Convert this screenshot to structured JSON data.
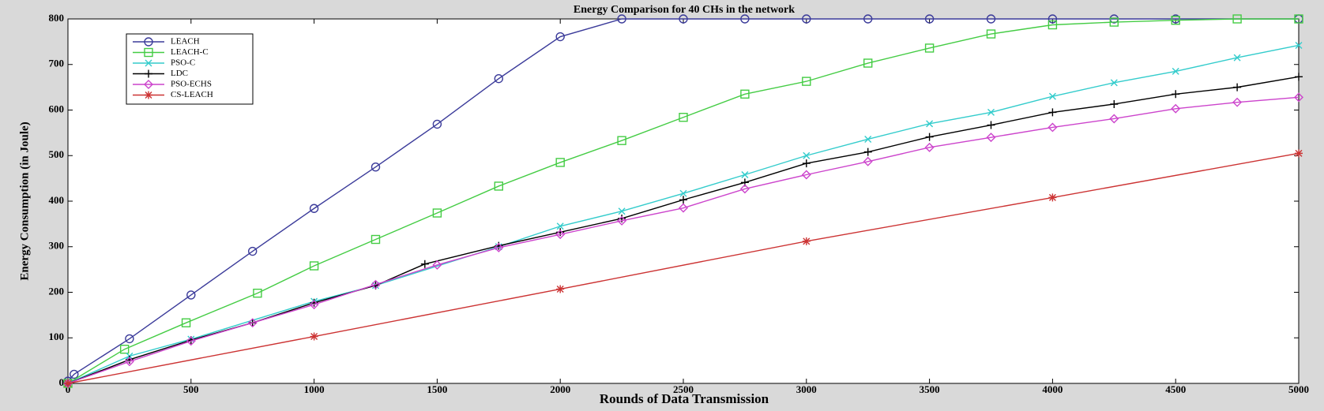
{
  "chart_data": {
    "type": "line",
    "title": "Energy Comparison for 40 CHs in the network",
    "x_label": "Rounds of Data Transmission",
    "y_label": "Energy Consumption (in Joule)",
    "xlim": [
      0,
      5000
    ],
    "xticks": [
      0,
      500,
      1000,
      1500,
      2000,
      2500,
      3000,
      3500,
      4000,
      4500,
      5000
    ],
    "ylim": [
      0,
      800
    ],
    "yticks": [
      0,
      100,
      200,
      300,
      400,
      500,
      600,
      700,
      800
    ],
    "grid": false,
    "legend": "upper left",
    "series": [
      {
        "name": "LEACH",
        "color": "#3b3b9a",
        "marker": "circle",
        "x": [
          0,
          25,
          250,
          500,
          750,
          1000,
          1250,
          1500,
          1750,
          2000,
          2250,
          2500,
          2750,
          3000,
          3250,
          3500,
          3750,
          4000,
          4250,
          4500,
          5000
        ],
        "values": [
          5,
          20,
          98,
          194,
          290,
          384,
          475,
          569,
          669,
          761,
          800,
          800,
          800,
          800,
          800,
          800,
          800,
          800,
          800,
          800,
          800
        ]
      },
      {
        "name": "LEACH-C",
        "color": "#44cc44",
        "marker": "square",
        "x": [
          0,
          230,
          480,
          770,
          1000,
          1250,
          1500,
          1750,
          2000,
          2250,
          2500,
          2750,
          3000,
          3250,
          3500,
          3750,
          4000,
          4250,
          4500,
          4750,
          5000
        ],
        "values": [
          0,
          75,
          133,
          198,
          258,
          316,
          374,
          433,
          485,
          533,
          584,
          635,
          663,
          703,
          736,
          767,
          787,
          793,
          797,
          800,
          800
        ]
      },
      {
        "name": "PSO-C",
        "color": "#33cccc",
        "marker": "x",
        "x": [
          0,
          250,
          500,
          1000,
          1250,
          1750,
          2000,
          2250,
          2500,
          2750,
          3000,
          3250,
          3500,
          3750,
          4000,
          4250,
          4500,
          4750,
          5000
        ],
        "values": [
          0,
          60,
          97,
          180,
          215,
          300,
          345,
          378,
          417,
          458,
          500,
          536,
          570,
          595,
          630,
          660,
          685,
          715,
          742
        ]
      },
      {
        "name": "LDC",
        "color": "#000000",
        "marker": "plus",
        "x": [
          0,
          250,
          500,
          750,
          1000,
          1250,
          1450,
          1750,
          2000,
          2250,
          2500,
          2750,
          3000,
          3250,
          3500,
          3750,
          4000,
          4250,
          4500,
          4750,
          5000
        ],
        "values": [
          0,
          52,
          95,
          133,
          177,
          215,
          262,
          302,
          332,
          362,
          403,
          441,
          483,
          508,
          541,
          567,
          595,
          613,
          635,
          650,
          673
        ]
      },
      {
        "name": "PSO-ECHS",
        "color": "#cc44cc",
        "marker": "diamond",
        "x": [
          0,
          250,
          500,
          750,
          1000,
          1250,
          1500,
          1750,
          2000,
          2250,
          2500,
          2750,
          3000,
          3250,
          3500,
          3750,
          4000,
          4250,
          4500,
          4750,
          5000
        ],
        "values": [
          0,
          48,
          93,
          133,
          173,
          217,
          260,
          298,
          327,
          357,
          385,
          427,
          458,
          487,
          518,
          540,
          562,
          581,
          603,
          617,
          628
        ]
      },
      {
        "name": "CS-LEACH",
        "color": "#cc3333",
        "marker": "asterisk",
        "x": [
          0,
          1000,
          2000,
          3000,
          4000,
          5000
        ],
        "values": [
          0,
          103,
          207,
          312,
          408,
          505
        ]
      }
    ]
  }
}
